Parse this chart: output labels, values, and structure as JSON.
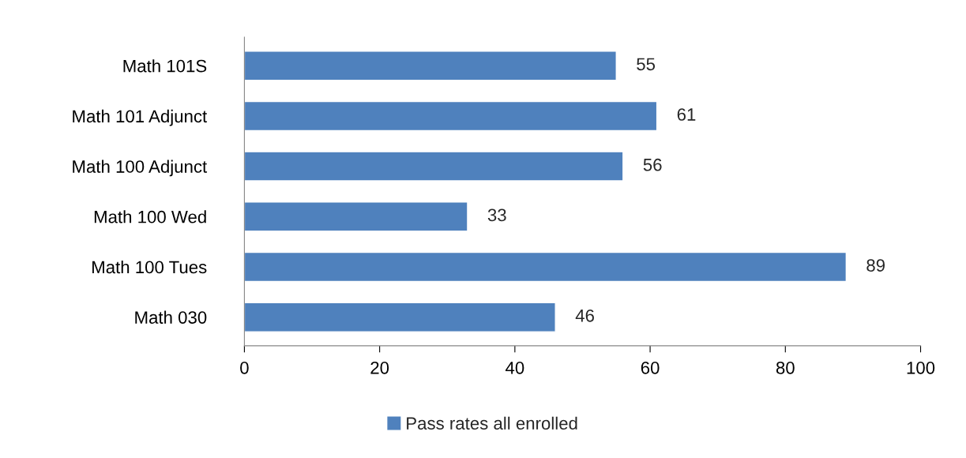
{
  "chart_data": {
    "type": "bar",
    "orientation": "horizontal",
    "categories": [
      "Math 101S",
      "Math 101 Adjunct",
      "Math 100 Adjunct",
      "Math 100 Wed",
      "Math 100 Tues",
      "Math 030"
    ],
    "series": [
      {
        "name": "Pass rates all enrolled",
        "color": "#4f81bd",
        "values": [
          55,
          61,
          56,
          33,
          89,
          46
        ]
      }
    ],
    "xlim": [
      0,
      100
    ],
    "xticks": [
      0,
      20,
      40,
      60,
      80,
      100
    ],
    "grid": false,
    "legend": "bottom",
    "data_labels": true
  }
}
